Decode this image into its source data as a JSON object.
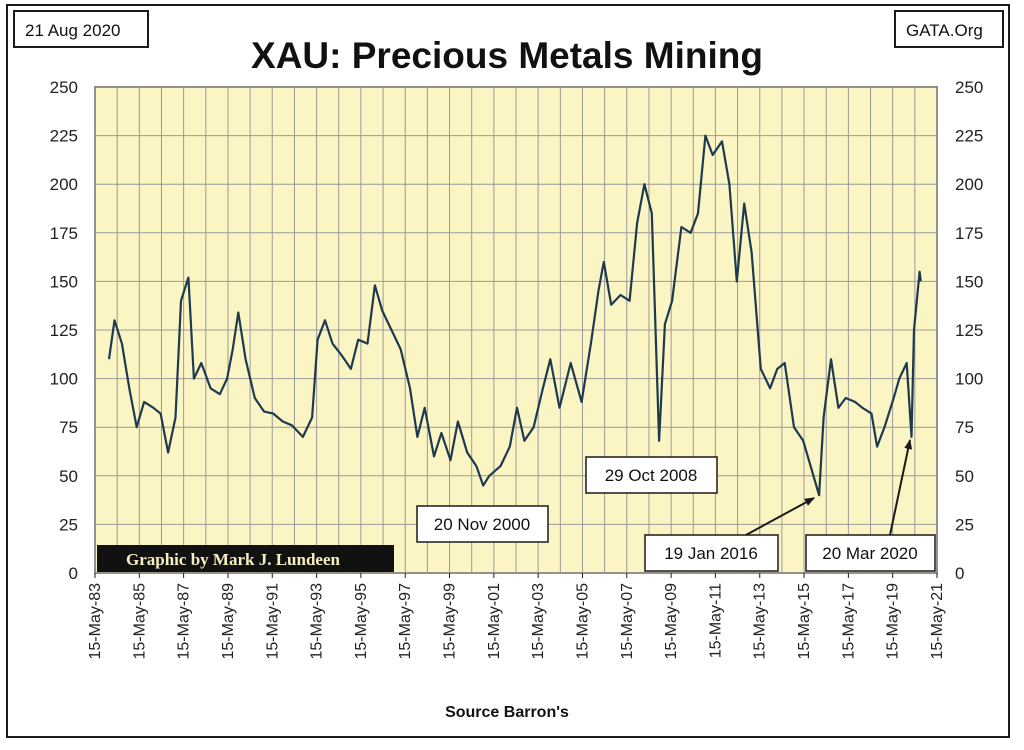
{
  "header": {
    "date_label": "21 Aug 2020",
    "site_label": "GATA.Org"
  },
  "footer": {
    "credit": "Graphic by Mark J. Lundeen",
    "source": "Source Barron's"
  },
  "colors": {
    "plot_background": "#fbf5c3",
    "grid": "#9a9a9a",
    "series": "#1d3a4f",
    "credit_background": "#111111"
  },
  "chart_data": {
    "type": "line",
    "title": "XAU: Precious Metals Mining",
    "xlabel": "Source Barron's",
    "ylabel": "",
    "ylim": [
      0,
      250
    ],
    "yticks": [
      0,
      25,
      50,
      75,
      100,
      125,
      150,
      175,
      200,
      225,
      250
    ],
    "y_axis_both_sides": true,
    "grid": true,
    "x_range": [
      "1983-05-15",
      "2021-05-15"
    ],
    "xticks": [
      "15-May-83",
      "15-May-85",
      "15-May-87",
      "15-May-89",
      "15-May-91",
      "15-May-93",
      "15-May-95",
      "15-May-97",
      "15-May-99",
      "15-May-01",
      "15-May-03",
      "15-May-05",
      "15-May-07",
      "15-May-09",
      "15-May-11",
      "15-May-13",
      "15-May-15",
      "15-May-17",
      "15-May-19",
      "15-May-21"
    ],
    "series": [
      {
        "name": "",
        "points": [
          [
            "1984-01-01",
            110
          ],
          [
            "1984-04-01",
            130
          ],
          [
            "1984-08-01",
            118
          ],
          [
            "1984-12-01",
            95
          ],
          [
            "1985-04-01",
            75
          ],
          [
            "1985-08-01",
            88
          ],
          [
            "1986-01-01",
            85
          ],
          [
            "1986-05-01",
            82
          ],
          [
            "1986-09-01",
            62
          ],
          [
            "1987-01-01",
            80
          ],
          [
            "1987-04-01",
            140
          ],
          [
            "1987-08-01",
            152
          ],
          [
            "1987-11-01",
            100
          ],
          [
            "1988-03-01",
            108
          ],
          [
            "1988-08-01",
            95
          ],
          [
            "1989-01-01",
            92
          ],
          [
            "1989-05-01",
            100
          ],
          [
            "1989-08-01",
            115
          ],
          [
            "1989-11-01",
            134
          ],
          [
            "1990-03-01",
            110
          ],
          [
            "1990-08-01",
            90
          ],
          [
            "1991-01-01",
            83
          ],
          [
            "1991-06-01",
            82
          ],
          [
            "1991-11-01",
            78
          ],
          [
            "1992-04-01",
            76
          ],
          [
            "1992-10-01",
            70
          ],
          [
            "1993-03-01",
            80
          ],
          [
            "1993-06-01",
            120
          ],
          [
            "1993-10-01",
            130
          ],
          [
            "1994-02-01",
            118
          ],
          [
            "1994-07-01",
            112
          ],
          [
            "1994-12-01",
            105
          ],
          [
            "1995-04-01",
            120
          ],
          [
            "1995-09-01",
            118
          ],
          [
            "1996-01-01",
            148
          ],
          [
            "1996-05-01",
            135
          ],
          [
            "1996-10-01",
            125
          ],
          [
            "1997-03-01",
            115
          ],
          [
            "1997-08-01",
            95
          ],
          [
            "1997-12-01",
            70
          ],
          [
            "1998-04-01",
            85
          ],
          [
            "1998-09-01",
            60
          ],
          [
            "1999-01-01",
            72
          ],
          [
            "1999-06-01",
            58
          ],
          [
            "1999-10-01",
            78
          ],
          [
            "2000-03-01",
            62
          ],
          [
            "2000-08-01",
            55
          ],
          [
            "2000-11-20",
            45
          ],
          [
            "2001-03-01",
            50
          ],
          [
            "2001-09-01",
            55
          ],
          [
            "2002-02-01",
            65
          ],
          [
            "2002-06-01",
            85
          ],
          [
            "2002-10-01",
            68
          ],
          [
            "2003-03-01",
            75
          ],
          [
            "2003-08-01",
            95
          ],
          [
            "2003-12-01",
            110
          ],
          [
            "2004-05-01",
            85
          ],
          [
            "2004-11-01",
            108
          ],
          [
            "2005-05-01",
            88
          ],
          [
            "2005-10-01",
            118
          ],
          [
            "2006-02-01",
            145
          ],
          [
            "2006-05-01",
            160
          ],
          [
            "2006-09-01",
            138
          ],
          [
            "2007-02-01",
            143
          ],
          [
            "2007-07-01",
            140
          ],
          [
            "2007-11-01",
            180
          ],
          [
            "2008-03-01",
            200
          ],
          [
            "2008-07-01",
            185
          ],
          [
            "2008-10-29",
            68
          ],
          [
            "2009-02-01",
            128
          ],
          [
            "2009-06-01",
            140
          ],
          [
            "2009-11-01",
            178
          ],
          [
            "2010-04-01",
            175
          ],
          [
            "2010-08-01",
            185
          ],
          [
            "2010-12-01",
            225
          ],
          [
            "2011-04-01",
            215
          ],
          [
            "2011-09-01",
            222
          ],
          [
            "2012-01-01",
            200
          ],
          [
            "2012-05-01",
            150
          ],
          [
            "2012-09-01",
            190
          ],
          [
            "2013-01-01",
            165
          ],
          [
            "2013-06-01",
            105
          ],
          [
            "2013-11-01",
            95
          ],
          [
            "2014-03-01",
            105
          ],
          [
            "2014-07-01",
            108
          ],
          [
            "2014-12-01",
            75
          ],
          [
            "2015-05-01",
            68
          ],
          [
            "2015-09-01",
            55
          ],
          [
            "2016-01-19",
            40
          ],
          [
            "2016-04-01",
            80
          ],
          [
            "2016-08-01",
            110
          ],
          [
            "2016-12-01",
            85
          ],
          [
            "2017-04-01",
            90
          ],
          [
            "2017-09-01",
            88
          ],
          [
            "2018-01-01",
            85
          ],
          [
            "2018-06-01",
            82
          ],
          [
            "2018-09-01",
            65
          ],
          [
            "2019-01-01",
            75
          ],
          [
            "2019-06-01",
            90
          ],
          [
            "2019-09-01",
            100
          ],
          [
            "2020-01-01",
            108
          ],
          [
            "2020-03-20",
            70
          ],
          [
            "2020-05-01",
            125
          ],
          [
            "2020-08-01",
            155
          ],
          [
            "2020-08-21",
            150
          ]
        ]
      }
    ],
    "annotations": [
      {
        "label": "20 Nov 2000"
      },
      {
        "label": "29 Oct 2008"
      },
      {
        "label": "19 Jan 2016"
      },
      {
        "label": "20 Mar 2020"
      }
    ]
  }
}
